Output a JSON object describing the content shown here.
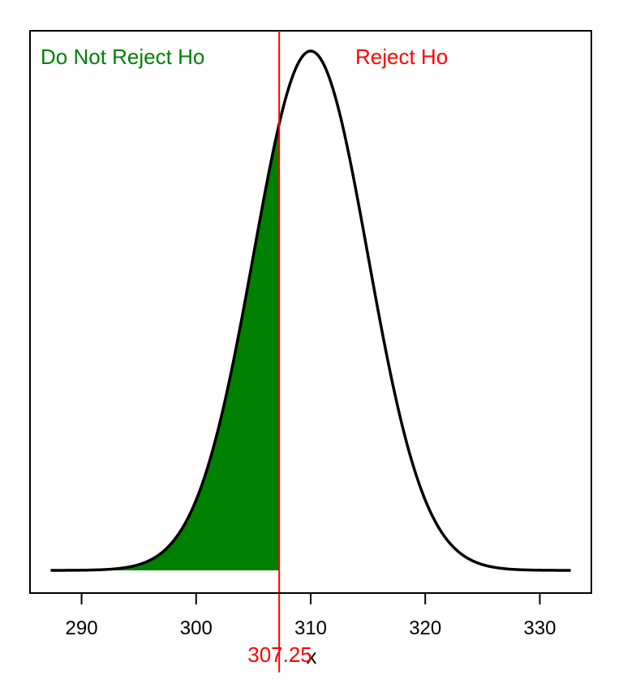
{
  "chart_data": {
    "type": "area",
    "distribution": "normal",
    "mean": 310,
    "sd": 5,
    "x_range": [
      287.3,
      332.7
    ],
    "xlim": [
      285.5,
      334.5
    ],
    "x_ticks": [
      290,
      300,
      310,
      320,
      330
    ],
    "tick_labels": [
      "290",
      "300",
      "310",
      "320",
      "330"
    ],
    "xlabel": "x",
    "ylabel": "",
    "y_axis_shown": false,
    "grid": false,
    "critical_value": 307.25,
    "critical_label": "307.25",
    "shaded_region": {
      "from": 287.3,
      "to": 307.25,
      "color": "#008000"
    },
    "region_labels": {
      "left": {
        "text": "Do Not Reject Ho",
        "color": "#008000"
      },
      "right": {
        "text": "Reject Ho",
        "color": "#ff0000"
      }
    },
    "colors": {
      "curve": "#000000",
      "critical_line": "#ff0000",
      "shade": "#008000"
    }
  }
}
